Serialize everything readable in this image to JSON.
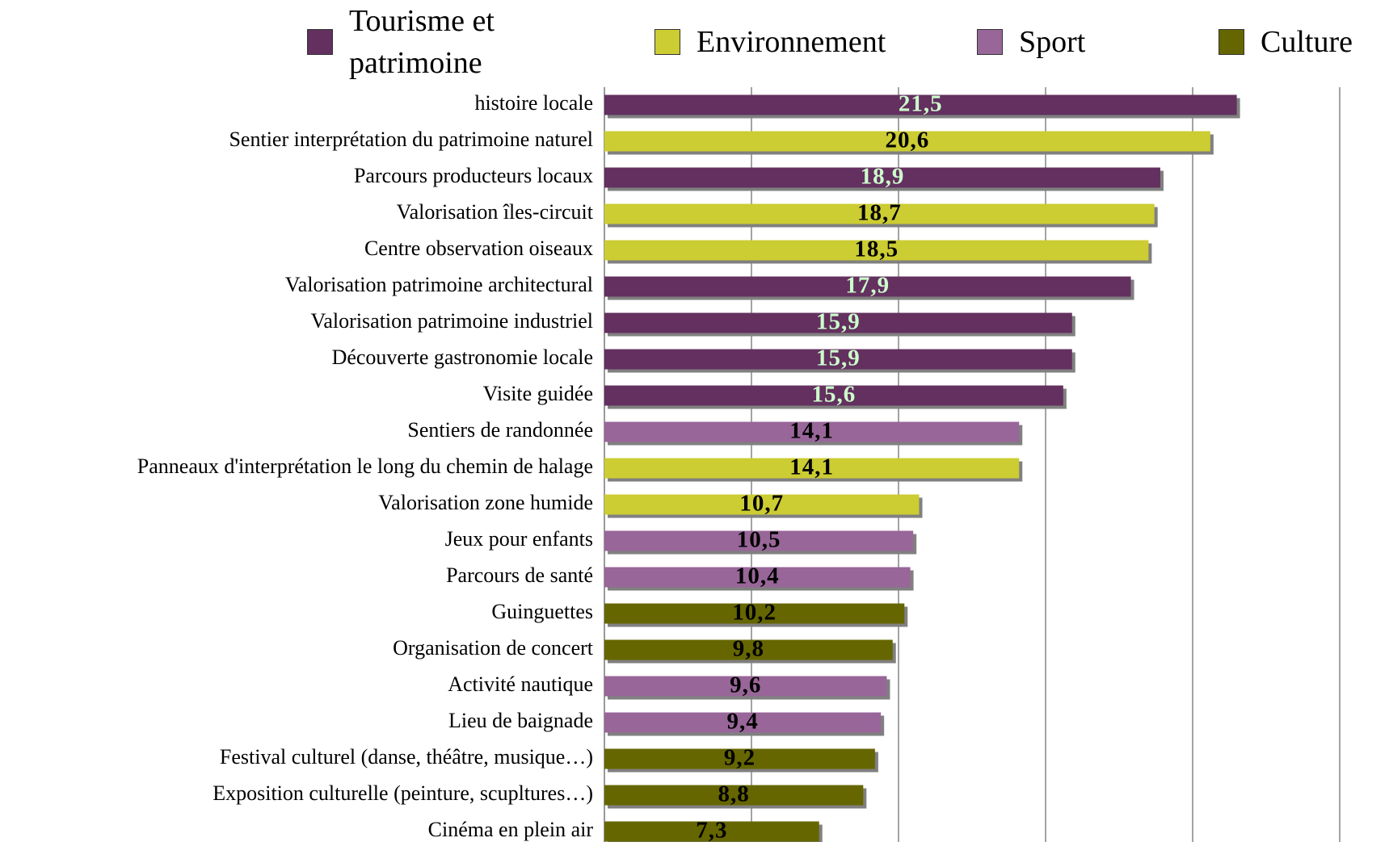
{
  "chart_data": {
    "type": "barh",
    "categories": [
      "histoire locale",
      "Sentier interprétation du patrimoine naturel",
      "Parcours producteurs locaux",
      "Valorisation îles-circuit",
      "Centre observation oiseaux",
      "Valorisation patrimoine architectural",
      "Valorisation patrimoine industriel",
      "Découverte gastronomie locale",
      "Visite guidée",
      "Sentiers de randonnée",
      "Panneaux d'interprétation le long du chemin de halage",
      "Valorisation zone humide",
      "Jeux pour enfants",
      "Parcours de santé",
      "Guinguettes",
      "Organisation de concert",
      "Activité nautique",
      "Lieu de baignade",
      "Festival culturel (danse, théâtre, musique…)",
      "Exposition culturelle (peinture, scupltures…)",
      "Cinéma en plein air"
    ],
    "series": [
      {
        "name": "Tourisme et patrimoine",
        "color": "#63305f",
        "label_color": "#ccffcc",
        "values": [
          21.5,
          null,
          18.9,
          null,
          null,
          17.9,
          15.9,
          15.9,
          15.6,
          null,
          null,
          null,
          null,
          null,
          null,
          null,
          null,
          null,
          null,
          null,
          null
        ],
        "value_labels": [
          "21,5",
          null,
          "18,9",
          null,
          null,
          "17,9",
          "15,9",
          "15,9",
          "15,6",
          null,
          null,
          null,
          null,
          null,
          null,
          null,
          null,
          null,
          null,
          null,
          null
        ]
      },
      {
        "name": "Environnement",
        "color": "#cccc33",
        "label_color": "#000000",
        "values": [
          null,
          20.6,
          null,
          18.7,
          18.5,
          null,
          null,
          null,
          null,
          null,
          14.1,
          10.7,
          null,
          null,
          null,
          null,
          null,
          null,
          null,
          null,
          null
        ],
        "value_labels": [
          null,
          "20,6",
          null,
          "18,7",
          "18,5",
          null,
          null,
          null,
          null,
          null,
          "14,1",
          "10,7",
          null,
          null,
          null,
          null,
          null,
          null,
          null,
          null,
          null
        ]
      },
      {
        "name": "Sport",
        "color": "#996699",
        "label_color": "#000000",
        "values": [
          null,
          null,
          null,
          null,
          null,
          null,
          null,
          null,
          null,
          14.1,
          null,
          null,
          10.5,
          10.4,
          null,
          null,
          9.6,
          9.4,
          null,
          null,
          null
        ],
        "value_labels": [
          null,
          null,
          null,
          null,
          null,
          null,
          null,
          null,
          null,
          "14,1",
          null,
          null,
          "10,5",
          "10,4",
          null,
          null,
          "9,6",
          "9,4",
          null,
          null,
          null
        ]
      },
      {
        "name": "Culture",
        "color": "#666600",
        "label_color": "#000000",
        "values": [
          null,
          null,
          null,
          null,
          null,
          null,
          null,
          null,
          null,
          null,
          null,
          null,
          null,
          null,
          10.2,
          9.8,
          null,
          null,
          9.2,
          8.8,
          7.3
        ],
        "value_labels": [
          null,
          null,
          null,
          null,
          null,
          null,
          null,
          null,
          null,
          null,
          null,
          null,
          null,
          null,
          "10,2",
          "9,8",
          null,
          null,
          "9,2",
          "8,8",
          "7,3"
        ]
      }
    ],
    "xlim": [
      0,
      25
    ],
    "xticks": [
      0,
      5,
      10,
      15,
      20,
      25
    ],
    "grid": true
  }
}
